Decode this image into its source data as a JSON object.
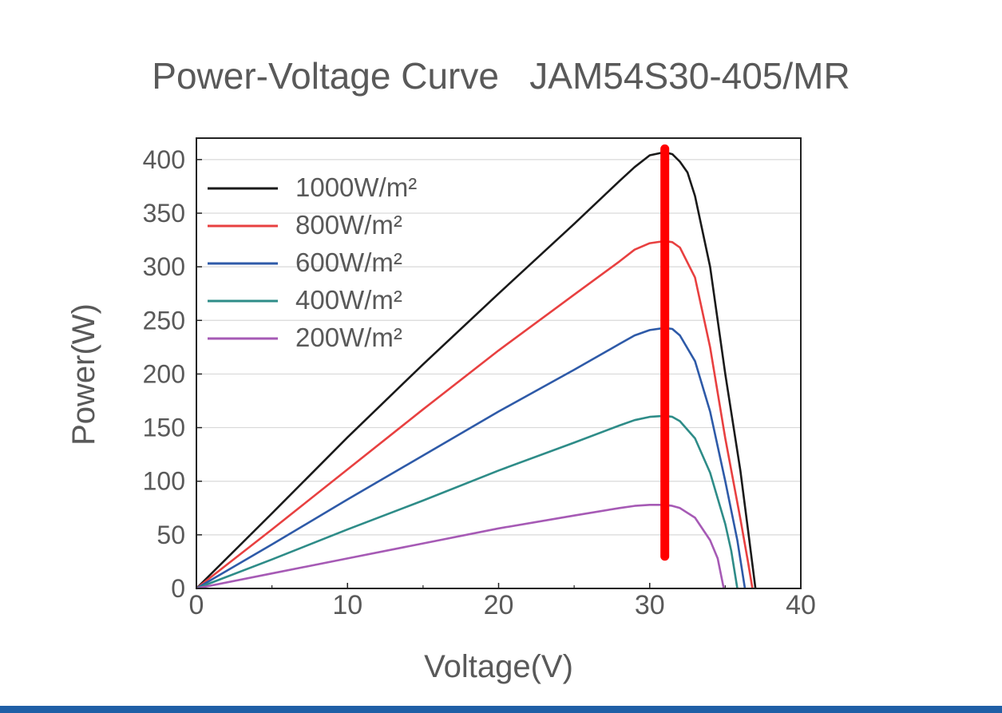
{
  "chart_data": {
    "type": "line",
    "title": "Power-Voltage Curve   JAM54S30-405/MR",
    "xlabel": "Voltage(V)",
    "ylabel": "Power(W)",
    "xlim": [
      0,
      40
    ],
    "ylim": [
      0,
      420
    ],
    "xticks": [
      0,
      10,
      20,
      30,
      40
    ],
    "yticks": [
      0,
      50,
      100,
      150,
      200,
      250,
      300,
      350,
      400
    ],
    "grid": "horizontal",
    "legend_position": "top-left",
    "mpp_marker": {
      "x": 31,
      "y_range": [
        30,
        410
      ],
      "color": "#ff0000"
    },
    "series": [
      {
        "name": "1000W/m²",
        "color": "#1a1a1a",
        "x": [
          0,
          5,
          10,
          15,
          20,
          25,
          28,
          29,
          30,
          31,
          31.5,
          32,
          32.5,
          33,
          34,
          35,
          36,
          36.5,
          37
        ],
        "y": [
          0,
          70,
          141,
          209,
          275,
          340,
          380,
          393,
          404,
          407,
          405,
          398,
          388,
          366,
          300,
          200,
          110,
          55,
          0
        ]
      },
      {
        "name": "800W/m²",
        "color": "#e84040",
        "x": [
          0,
          5,
          10,
          15,
          20,
          25,
          28,
          29,
          30,
          31,
          31.5,
          32,
          33,
          34,
          35,
          36,
          36.5,
          36.8
        ],
        "y": [
          0,
          55,
          111,
          167,
          222,
          274,
          305,
          316,
          322,
          324,
          323,
          318,
          290,
          225,
          140,
          65,
          25,
          0
        ]
      },
      {
        "name": "600W/m²",
        "color": "#2e5aa8",
        "x": [
          0,
          5,
          10,
          15,
          20,
          25,
          28,
          29,
          30,
          31,
          31.5,
          32,
          33,
          34,
          35,
          35.8,
          36.3
        ],
        "y": [
          0,
          41,
          83,
          124,
          165,
          204,
          228,
          236,
          241,
          243,
          242,
          236,
          212,
          165,
          100,
          45,
          0
        ]
      },
      {
        "name": "400W/m²",
        "color": "#2e8c88",
        "x": [
          0,
          5,
          10,
          15,
          20,
          25,
          28,
          29,
          30,
          31,
          31.5,
          32,
          33,
          34,
          35,
          35.4,
          35.8
        ],
        "y": [
          0,
          27,
          55,
          82,
          110,
          136,
          152,
          157,
          160,
          161,
          160,
          156,
          140,
          108,
          60,
          35,
          0
        ]
      },
      {
        "name": "200W/m²",
        "color": "#a65ab5",
        "x": [
          0,
          5,
          10,
          15,
          20,
          25,
          28,
          29,
          30,
          31,
          31.5,
          32,
          33,
          34,
          34.5,
          34.9
        ],
        "y": [
          0,
          14,
          28,
          42,
          56,
          68,
          75,
          77,
          78,
          78,
          77,
          75,
          66,
          45,
          28,
          0
        ]
      }
    ]
  }
}
